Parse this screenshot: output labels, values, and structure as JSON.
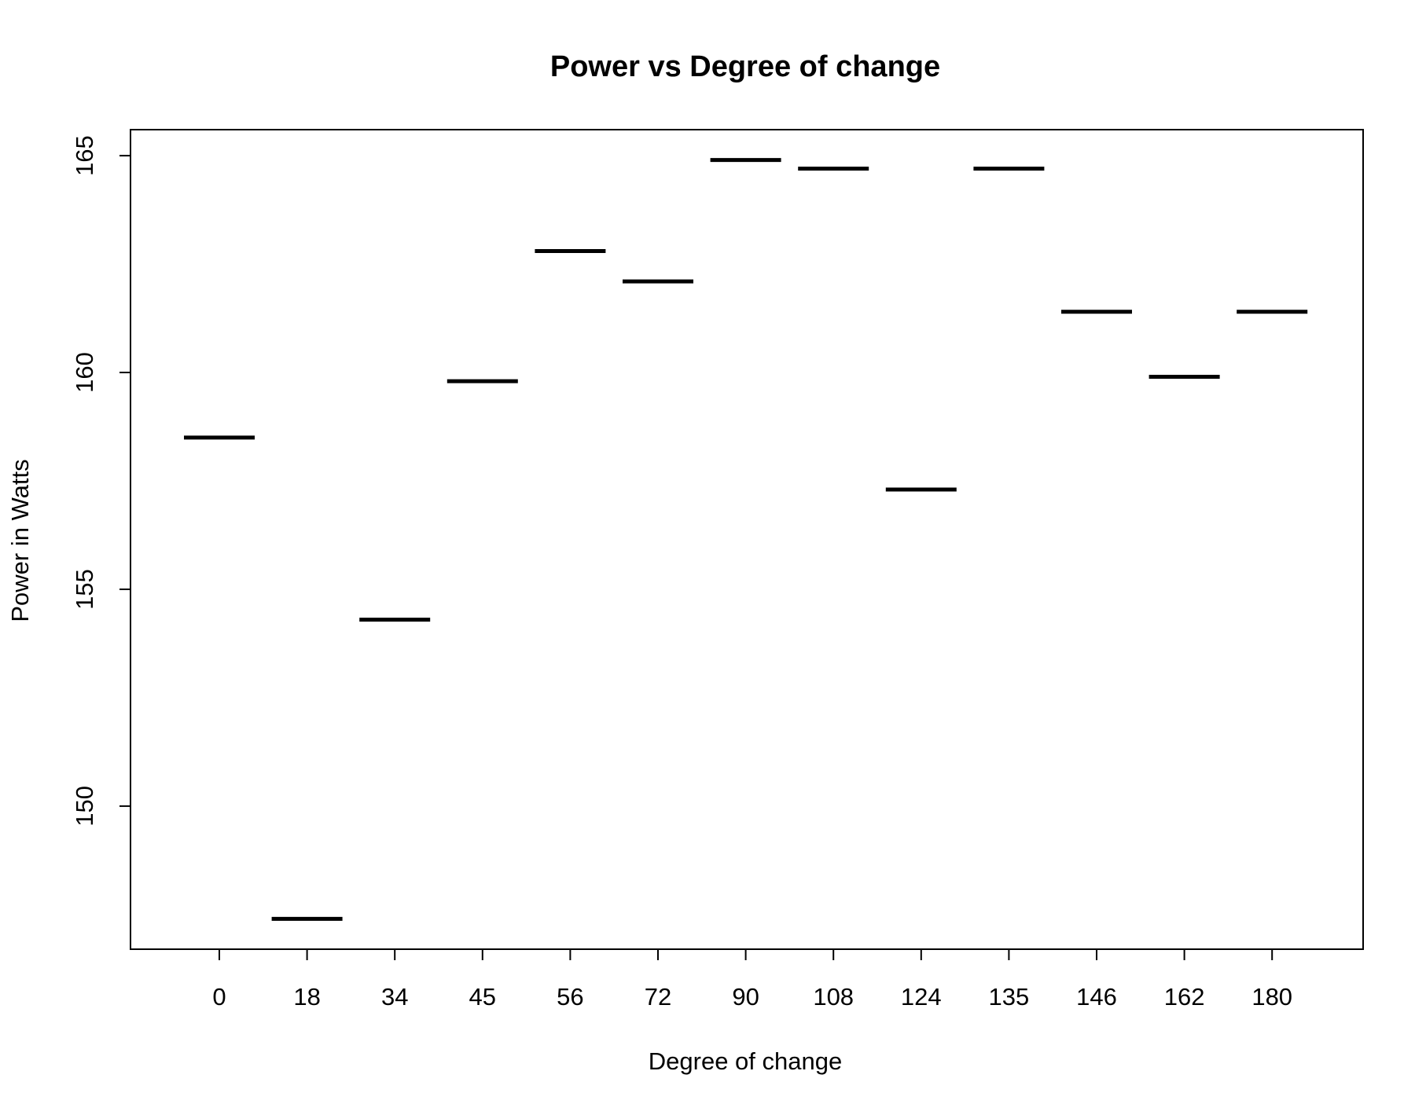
{
  "chart_data": {
    "type": "boxplot",
    "title": "Power vs Degree of change",
    "xlabel": "Degree of change",
    "ylabel": "Power in Watts",
    "categories": [
      "0",
      "18",
      "34",
      "45",
      "56",
      "72",
      "90",
      "108",
      "124",
      "135",
      "146",
      "162",
      "180"
    ],
    "values": [
      158.5,
      147.4,
      154.3,
      159.8,
      162.8,
      162.1,
      164.9,
      164.7,
      157.3,
      164.7,
      161.4,
      159.9,
      161.4
    ],
    "yticks": [
      150,
      155,
      160,
      165
    ],
    "ylim": [
      146.7,
      165.6
    ],
    "grid": false,
    "legend": "none",
    "colors": {
      "line": "#000000",
      "background": "#ffffff"
    }
  }
}
